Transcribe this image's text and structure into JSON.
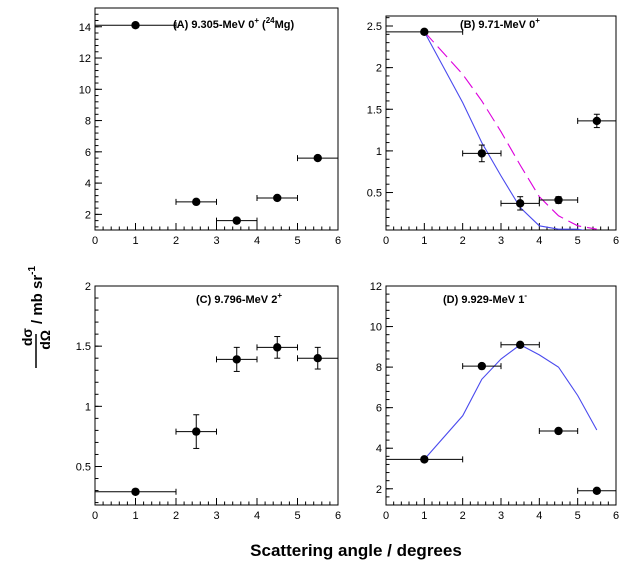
{
  "figure": {
    "xlabel": "Scattering angle / degrees",
    "ylabel_prefix": "dσ",
    "ylabel_denom": "dΩ",
    "ylabel_units": "/ mb sr",
    "ylabel_exp": "-1"
  },
  "chart_data": [
    {
      "type": "scatter",
      "panel": "A",
      "title": {
        "main": "(A) 9.305-MeV 0",
        "sup1": "+",
        "mid": " (",
        "sup2": "24",
        "end": "Mg)"
      },
      "xlim": [
        0,
        6
      ],
      "ylim": [
        1.0,
        15.2
      ],
      "xticks": [
        0,
        1,
        2,
        3,
        4,
        5,
        6
      ],
      "yticks": [
        2,
        4,
        6,
        8,
        10,
        12,
        14
      ],
      "points": [
        {
          "x": 1.0,
          "y": 14.1,
          "xerr": 1.0,
          "yerr": 0.0
        },
        {
          "x": 2.5,
          "y": 2.8,
          "xerr": 0.5,
          "yerr": 0.0
        },
        {
          "x": 3.5,
          "y": 1.6,
          "xerr": 0.5,
          "yerr": 0.0
        },
        {
          "x": 4.5,
          "y": 3.05,
          "xerr": 0.5,
          "yerr": 0.0
        },
        {
          "x": 5.5,
          "y": 5.6,
          "xerr": 0.5,
          "yerr": 0.0
        }
      ],
      "curves": []
    },
    {
      "type": "scatter",
      "panel": "B",
      "title": {
        "main": "(B) 9.71-MeV 0",
        "sup1": "+",
        "mid": "",
        "sup2": "",
        "end": ""
      },
      "xlim": [
        0,
        6
      ],
      "ylim": [
        0.05,
        2.62
      ],
      "xticks": [
        0,
        1,
        2,
        3,
        4,
        5,
        6
      ],
      "yticks": [
        0.5,
        1,
        1.5,
        2,
        2.5
      ],
      "ytick_labels": [
        "0.5",
        "1",
        "1.5",
        "2",
        "2.5"
      ],
      "points": [
        {
          "x": 1.0,
          "y": 2.43,
          "xerr": 1.0,
          "yerr": 0.0
        },
        {
          "x": 2.5,
          "y": 0.97,
          "xerr": 0.5,
          "yerr": 0.1
        },
        {
          "x": 3.5,
          "y": 0.37,
          "xerr": 0.5,
          "yerr": 0.08
        },
        {
          "x": 4.5,
          "y": 0.41,
          "xerr": 0.5,
          "yerr": 0.04
        },
        {
          "x": 5.5,
          "y": 1.36,
          "xerr": 0.5,
          "yerr": 0.08
        }
      ],
      "curves": [
        {
          "color": "#dd00dd",
          "dash": true,
          "x": [
            1.0,
            2.0,
            2.5,
            3.0,
            3.5,
            4.0,
            4.5,
            5.0,
            5.5
          ],
          "y": [
            2.43,
            1.92,
            1.6,
            1.23,
            0.83,
            0.45,
            0.22,
            0.1,
            0.06
          ]
        },
        {
          "color": "#4a4aee",
          "dash": false,
          "x": [
            1.0,
            2.0,
            2.5,
            3.0,
            3.5,
            4.0,
            4.5,
            5.0,
            5.5
          ],
          "y": [
            2.43,
            1.58,
            1.1,
            0.7,
            0.32,
            0.1,
            0.06,
            0.06,
            0.02
          ]
        }
      ]
    },
    {
      "type": "scatter",
      "panel": "C",
      "title": {
        "main": "(C) 9.796-MeV 2",
        "sup1": "+",
        "mid": "",
        "sup2": "",
        "end": ""
      },
      "xlim": [
        0,
        6
      ],
      "ylim": [
        0.18,
        2.0
      ],
      "xticks": [
        0,
        1,
        2,
        3,
        4,
        5,
        6
      ],
      "yticks": [
        0.5,
        1,
        1.5,
        2
      ],
      "ytick_labels": [
        "0.5",
        "1",
        "1.5",
        "2"
      ],
      "points": [
        {
          "x": 1.0,
          "y": 0.29,
          "xerr": 1.0,
          "yerr": 0.0
        },
        {
          "x": 2.5,
          "y": 0.79,
          "xerr": 0.5,
          "yerr": 0.14
        },
        {
          "x": 3.5,
          "y": 1.39,
          "xerr": 0.5,
          "yerr": 0.1
        },
        {
          "x": 4.5,
          "y": 1.49,
          "xerr": 0.5,
          "yerr": 0.09
        },
        {
          "x": 5.5,
          "y": 1.4,
          "xerr": 0.5,
          "yerr": 0.09
        }
      ],
      "curves": []
    },
    {
      "type": "scatter",
      "panel": "D",
      "title": {
        "main": "(D) 9.929-MeV 1",
        "sup1": "-",
        "mid": "",
        "sup2": "",
        "end": ""
      },
      "xlim": [
        0,
        6
      ],
      "ylim": [
        1.2,
        12.0
      ],
      "xticks": [
        0,
        1,
        2,
        3,
        4,
        5,
        6
      ],
      "yticks": [
        2,
        4,
        6,
        8,
        10,
        12
      ],
      "points": [
        {
          "x": 1.0,
          "y": 3.45,
          "xerr": 1.0,
          "yerr": 0.0
        },
        {
          "x": 2.5,
          "y": 8.05,
          "xerr": 0.5,
          "yerr": 0.0
        },
        {
          "x": 3.5,
          "y": 9.1,
          "xerr": 0.5,
          "yerr": 0.0
        },
        {
          "x": 4.5,
          "y": 4.85,
          "xerr": 0.5,
          "yerr": 0.0
        },
        {
          "x": 5.5,
          "y": 1.9,
          "xerr": 0.5,
          "yerr": 0.0
        }
      ],
      "curves": [
        {
          "color": "#4a4aee",
          "dash": false,
          "x": [
            1.0,
            2.0,
            2.5,
            3.0,
            3.5,
            4.0,
            4.5,
            5.0,
            5.5
          ],
          "y": [
            3.45,
            5.6,
            7.4,
            8.4,
            9.1,
            8.6,
            8.0,
            6.6,
            4.9
          ]
        }
      ]
    }
  ]
}
